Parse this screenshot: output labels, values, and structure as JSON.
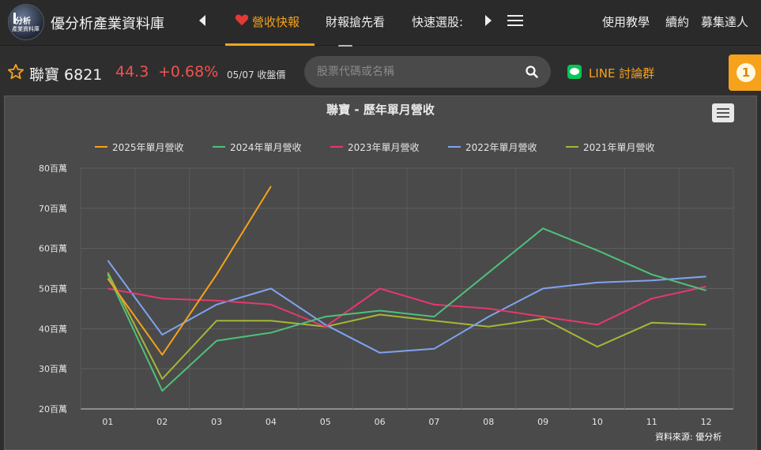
{
  "nav": {
    "site_title": "優分析產業資料庫",
    "logo_text": "優分析產業資料庫",
    "items": [
      {
        "label": "營收快報",
        "active": true
      },
      {
        "label": "財報搶先看",
        "active": false
      },
      {
        "label": "快速選股:",
        "active": false
      }
    ],
    "right_links": [
      "使用教學",
      "續約",
      "募集達人"
    ]
  },
  "stock": {
    "name_code": "聯寶 6821",
    "price": "44.3",
    "change": "+0.68%",
    "date_label": "05/07 收盤價"
  },
  "search": {
    "placeholder": "股票代碼或名稱"
  },
  "line_group": {
    "label": "LINE 討論群"
  },
  "notification": {
    "count": "1"
  },
  "colors": {
    "accent": "#f7a21b",
    "down_red": "#ef5350",
    "line_green": "#06c755"
  },
  "chart_data": {
    "type": "line",
    "title": "聯寶 - 歷年單月營收",
    "categories": [
      "01",
      "02",
      "03",
      "04",
      "05",
      "06",
      "07",
      "08",
      "09",
      "10",
      "11",
      "12"
    ],
    "y_tick_labels": [
      "20百萬",
      "30百萬",
      "40百萬",
      "50百萬",
      "60百萬",
      "70百萬",
      "80百萬"
    ],
    "ylim": [
      20,
      80
    ],
    "grid": true,
    "legend_position": "top",
    "series": [
      {
        "name": "2025年單月營收",
        "color": "#f7a21b",
        "values": [
          52.5,
          33.5,
          53.5,
          75.5,
          null,
          null,
          null,
          null,
          null,
          null,
          null,
          null
        ]
      },
      {
        "name": "2024年單月營收",
        "color": "#4fc07a",
        "values": [
          53.5,
          24.5,
          37,
          39,
          43,
          44.5,
          43,
          54,
          65,
          59.5,
          53.5,
          49.5
        ]
      },
      {
        "name": "2023年單月營收",
        "color": "#e8386c",
        "values": [
          50,
          47.5,
          47,
          46,
          40.5,
          50,
          46,
          45,
          43,
          41,
          47.5,
          50.5
        ]
      },
      {
        "name": "2022年單月營收",
        "color": "#7ea3f0",
        "values": [
          57,
          38.5,
          46,
          50,
          41,
          34,
          35,
          43,
          50,
          51.5,
          52,
          53
        ]
      },
      {
        "name": "2021年單月營收",
        "color": "#a6b636",
        "values": [
          54,
          27.5,
          42,
          42,
          40.5,
          43.5,
          42,
          40.5,
          42.5,
          35.5,
          41.5,
          41
        ]
      }
    ],
    "source": "資料來源: 優分析"
  }
}
